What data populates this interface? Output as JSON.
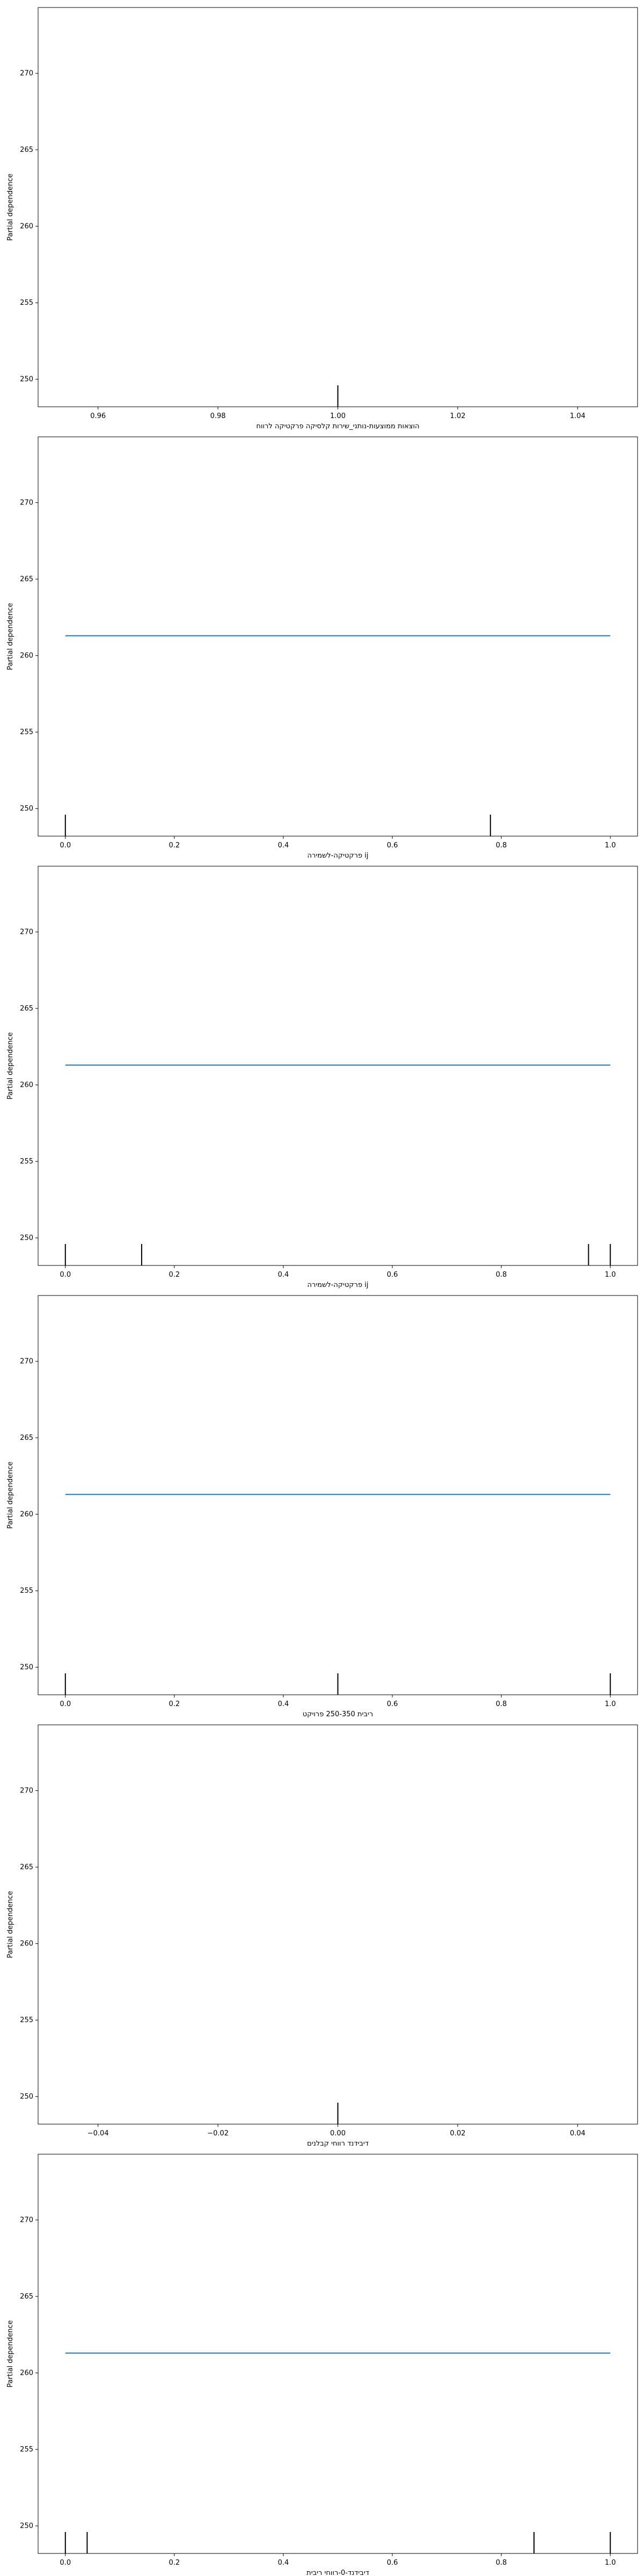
{
  "figure": {
    "background": "#ffffff",
    "line_color": "#1f77b4",
    "rug_color": "#000000"
  },
  "chart_data": [
    {
      "type": "line",
      "xlabel": "הוצאות ממוצעות-נותני_שירות קלסיקה פרקטיקה לרווח",
      "ylabel": "Partial dependence",
      "xlim": [
        0.95,
        1.05
      ],
      "ylim": [
        248.2,
        274.3
      ],
      "x_ticks": [
        0.96,
        0.98,
        1.0,
        1.02,
        1.04
      ],
      "x_tick_labels": [
        "0.96",
        "0.98",
        "1.00",
        "1.02",
        "1.04"
      ],
      "y_ticks": [
        250,
        255,
        260,
        265,
        270
      ],
      "y_tick_labels": [
        "250",
        "255",
        "260",
        "265",
        "270"
      ],
      "series": [
        {
          "x": [],
          "y": []
        }
      ],
      "rug": [
        1.0
      ]
    },
    {
      "type": "line",
      "xlabel": "פרקטיקה-לשמירה ij",
      "ylabel": "Partial dependence",
      "xlim": [
        -0.05,
        1.05
      ],
      "ylim": [
        248.2,
        274.3
      ],
      "x_ticks": [
        0.0,
        0.2,
        0.4,
        0.6,
        0.8,
        1.0
      ],
      "x_tick_labels": [
        "0.0",
        "0.2",
        "0.4",
        "0.6",
        "0.8",
        "1.0"
      ],
      "y_ticks": [
        250,
        255,
        260,
        265,
        270
      ],
      "y_tick_labels": [
        "250",
        "255",
        "260",
        "265",
        "270"
      ],
      "series": [
        {
          "x": [
            0.0,
            1.0
          ],
          "y": [
            261.3,
            261.3
          ]
        }
      ],
      "rug": [
        0.0,
        0.78
      ]
    },
    {
      "type": "line",
      "xlabel": "פרקטיקה-לשמירה ij",
      "ylabel": "Partial dependence",
      "xlim": [
        -0.05,
        1.05
      ],
      "ylim": [
        248.2,
        274.3
      ],
      "x_ticks": [
        0.0,
        0.2,
        0.4,
        0.6,
        0.8,
        1.0
      ],
      "x_tick_labels": [
        "0.0",
        "0.2",
        "0.4",
        "0.6",
        "0.8",
        "1.0"
      ],
      "y_ticks": [
        250,
        255,
        260,
        265,
        270
      ],
      "y_tick_labels": [
        "250",
        "255",
        "260",
        "265",
        "270"
      ],
      "series": [
        {
          "x": [
            0.0,
            1.0
          ],
          "y": [
            261.3,
            261.3
          ]
        }
      ],
      "rug": [
        0.0,
        0.14,
        0.96,
        1.0
      ]
    },
    {
      "type": "line",
      "xlabel": "ריבית 250-350 פרויקט",
      "ylabel": "Partial dependence",
      "xlim": [
        -0.05,
        1.05
      ],
      "ylim": [
        248.2,
        274.3
      ],
      "x_ticks": [
        0.0,
        0.2,
        0.4,
        0.6,
        0.8,
        1.0
      ],
      "x_tick_labels": [
        "0.0",
        "0.2",
        "0.4",
        "0.6",
        "0.8",
        "1.0"
      ],
      "y_ticks": [
        250,
        255,
        260,
        265,
        270
      ],
      "y_tick_labels": [
        "250",
        "255",
        "260",
        "265",
        "270"
      ],
      "series": [
        {
          "x": [
            0.0,
            1.0
          ],
          "y": [
            261.3,
            261.3
          ]
        }
      ],
      "rug": [
        0.0,
        0.5,
        1.0
      ]
    },
    {
      "type": "line",
      "xlabel": "דיבידנד רווחי קבלנים",
      "ylabel": "Partial dependence",
      "xlim": [
        -0.05,
        0.05
      ],
      "ylim": [
        248.2,
        274.3
      ],
      "x_ticks": [
        -0.04,
        -0.02,
        0.0,
        0.02,
        0.04
      ],
      "x_tick_labels": [
        "−0.04",
        "−0.02",
        "0.00",
        "0.02",
        "0.04"
      ],
      "y_ticks": [
        250,
        255,
        260,
        265,
        270
      ],
      "y_tick_labels": [
        "250",
        "255",
        "260",
        "265",
        "270"
      ],
      "series": [
        {
          "x": [],
          "y": []
        }
      ],
      "rug": [
        0.0
      ]
    },
    {
      "type": "line",
      "xlabel": "דיבידנד-0-רווחי ריבית",
      "ylabel": "Partial dependence",
      "xlim": [
        -0.05,
        1.05
      ],
      "ylim": [
        248.2,
        274.3
      ],
      "x_ticks": [
        0.0,
        0.2,
        0.4,
        0.6,
        0.8,
        1.0
      ],
      "x_tick_labels": [
        "0.0",
        "0.2",
        "0.4",
        "0.6",
        "0.8",
        "1.0"
      ],
      "y_ticks": [
        250,
        255,
        260,
        265,
        270
      ],
      "y_tick_labels": [
        "250",
        "255",
        "260",
        "265",
        "270"
      ],
      "series": [
        {
          "x": [
            0.0,
            1.0
          ],
          "y": [
            261.3,
            261.3
          ]
        }
      ],
      "rug": [
        0.0,
        0.04,
        0.86,
        1.0
      ]
    }
  ]
}
